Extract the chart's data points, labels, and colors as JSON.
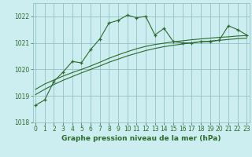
{
  "title": "Graphe pression niveau de la mer (hPa)",
  "background_color": "#cceef0",
  "grid_color": "#88bbbd",
  "line_color": "#2d6a2d",
  "x_hours": [
    0,
    1,
    2,
    3,
    4,
    5,
    6,
    7,
    8,
    9,
    10,
    11,
    12,
    13,
    14,
    15,
    16,
    17,
    18,
    19,
    20,
    21,
    22,
    23
  ],
  "main_values": [
    1018.65,
    1018.85,
    1019.55,
    1019.9,
    1020.3,
    1020.25,
    1020.75,
    1021.15,
    1021.75,
    1021.85,
    1022.05,
    1021.95,
    1022.0,
    1021.3,
    1021.55,
    1021.05,
    1021.0,
    1021.0,
    1021.05,
    1021.05,
    1021.1,
    1021.65,
    1021.5,
    1021.3
  ],
  "smooth1_values": [
    1019.25,
    1019.45,
    1019.6,
    1019.75,
    1019.88,
    1020.0,
    1020.13,
    1020.27,
    1020.42,
    1020.55,
    1020.67,
    1020.78,
    1020.87,
    1020.94,
    1020.99,
    1021.04,
    1021.08,
    1021.12,
    1021.15,
    1021.18,
    1021.21,
    1021.23,
    1021.26,
    1021.28
  ],
  "smooth2_values": [
    1019.05,
    1019.25,
    1019.43,
    1019.59,
    1019.73,
    1019.87,
    1020.0,
    1020.13,
    1020.27,
    1020.39,
    1020.51,
    1020.61,
    1020.71,
    1020.79,
    1020.86,
    1020.91,
    1020.96,
    1021.0,
    1021.04,
    1021.07,
    1021.1,
    1021.13,
    1021.16,
    1021.18
  ],
  "ylim": [
    1018.0,
    1022.5
  ],
  "yticks": [
    1018,
    1019,
    1020,
    1021,
    1022
  ],
  "xticks": [
    0,
    1,
    2,
    3,
    4,
    5,
    6,
    7,
    8,
    9,
    10,
    11,
    12,
    13,
    14,
    15,
    16,
    17,
    18,
    19,
    20,
    21,
    22,
    23
  ],
  "title_fontsize": 6.5,
  "tick_fontsize": 5.5
}
